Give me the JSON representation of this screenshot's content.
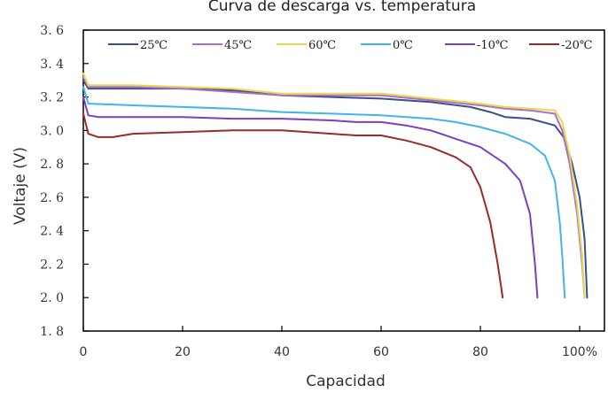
{
  "chart_data": {
    "type": "line",
    "title": "Curva de descarga vs. temperatura",
    "xlabel": "Capacidad",
    "ylabel": "Voltaje (V)",
    "xlim": [
      0,
      105
    ],
    "ylim": [
      1.8,
      3.6
    ],
    "x_ticks": [
      {
        "value": 0,
        "label": "0"
      },
      {
        "value": 20,
        "label": "20"
      },
      {
        "value": 40,
        "label": "40"
      },
      {
        "value": 60,
        "label": "60"
      },
      {
        "value": 80,
        "label": "80"
      },
      {
        "value": 100,
        "label": "100%"
      }
    ],
    "y_ticks": [
      {
        "value": 1.8,
        "label": "1. 8"
      },
      {
        "value": 2.0,
        "label": "2. 0"
      },
      {
        "value": 2.2,
        "label": "2. 2"
      },
      {
        "value": 2.4,
        "label": "2. 4"
      },
      {
        "value": 2.6,
        "label": "2. 6"
      },
      {
        "value": 2.8,
        "label": "2. 8"
      },
      {
        "value": 3.0,
        "label": "3. 0"
      },
      {
        "value": 3.2,
        "label": "3. 2"
      },
      {
        "value": 3.4,
        "label": "3. 4"
      },
      {
        "value": 3.6,
        "label": "3. 6"
      }
    ],
    "grid": false,
    "legend_position": "top",
    "series": [
      {
        "name": "25℃",
        "color": "#3a4f8a",
        "points": [
          [
            0,
            3.3
          ],
          [
            1,
            3.25
          ],
          [
            10,
            3.25
          ],
          [
            20,
            3.25
          ],
          [
            30,
            3.24
          ],
          [
            40,
            3.21
          ],
          [
            50,
            3.2
          ],
          [
            60,
            3.19
          ],
          [
            70,
            3.17
          ],
          [
            78,
            3.14
          ],
          [
            82,
            3.11
          ],
          [
            85,
            3.08
          ],
          [
            90,
            3.07
          ],
          [
            95,
            3.03
          ],
          [
            97,
            2.95
          ],
          [
            98.5,
            2.8
          ],
          [
            100,
            2.6
          ],
          [
            101,
            2.35
          ],
          [
            101.5,
            2.0
          ]
        ]
      },
      {
        "name": "45℃",
        "color": "#a86ed0",
        "points": [
          [
            0,
            3.32
          ],
          [
            1,
            3.26
          ],
          [
            10,
            3.26
          ],
          [
            20,
            3.25
          ],
          [
            30,
            3.23
          ],
          [
            40,
            3.21
          ],
          [
            50,
            3.21
          ],
          [
            60,
            3.21
          ],
          [
            70,
            3.18
          ],
          [
            80,
            3.15
          ],
          [
            85,
            3.13
          ],
          [
            90,
            3.12
          ],
          [
            95,
            3.1
          ],
          [
            96.5,
            3.0
          ],
          [
            98,
            2.8
          ],
          [
            99.5,
            2.5
          ],
          [
            100.5,
            2.2
          ],
          [
            101,
            2.0
          ]
        ]
      },
      {
        "name": "60℃",
        "color": "#e8d84a",
        "points": [
          [
            0,
            3.34
          ],
          [
            1,
            3.27
          ],
          [
            10,
            3.27
          ],
          [
            20,
            3.26
          ],
          [
            30,
            3.25
          ],
          [
            40,
            3.22
          ],
          [
            50,
            3.22
          ],
          [
            60,
            3.22
          ],
          [
            70,
            3.19
          ],
          [
            80,
            3.16
          ],
          [
            85,
            3.14
          ],
          [
            90,
            3.13
          ],
          [
            95,
            3.12
          ],
          [
            96.5,
            3.05
          ],
          [
            98,
            2.85
          ],
          [
            99.5,
            2.55
          ],
          [
            100.5,
            2.25
          ],
          [
            101,
            2.0
          ]
        ]
      },
      {
        "name": "0℃",
        "color": "#3fb6e6",
        "points": [
          [
            0,
            3.26
          ],
          [
            1,
            3.16
          ],
          [
            10,
            3.15
          ],
          [
            20,
            3.14
          ],
          [
            30,
            3.13
          ],
          [
            40,
            3.11
          ],
          [
            50,
            3.1
          ],
          [
            60,
            3.09
          ],
          [
            70,
            3.07
          ],
          [
            75,
            3.05
          ],
          [
            80,
            3.02
          ],
          [
            85,
            2.98
          ],
          [
            90,
            2.92
          ],
          [
            93,
            2.85
          ],
          [
            95,
            2.7
          ],
          [
            96,
            2.45
          ],
          [
            96.5,
            2.25
          ],
          [
            97,
            2.0
          ]
        ]
      },
      {
        "name": "-10℃",
        "color": "#7a3fc0",
        "points": [
          [
            0,
            3.2
          ],
          [
            1,
            3.09
          ],
          [
            3,
            3.08
          ],
          [
            10,
            3.08
          ],
          [
            20,
            3.08
          ],
          [
            30,
            3.07
          ],
          [
            40,
            3.07
          ],
          [
            50,
            3.06
          ],
          [
            55,
            3.05
          ],
          [
            60,
            3.05
          ],
          [
            65,
            3.03
          ],
          [
            70,
            3.0
          ],
          [
            75,
            2.95
          ],
          [
            80,
            2.9
          ],
          [
            85,
            2.8
          ],
          [
            88,
            2.7
          ],
          [
            90,
            2.5
          ],
          [
            91,
            2.2
          ],
          [
            91.5,
            2.0
          ]
        ]
      },
      {
        "name": "-20℃",
        "color": "#9a2a2a",
        "points": [
          [
            0,
            3.1
          ],
          [
            1,
            2.98
          ],
          [
            3,
            2.96
          ],
          [
            6,
            2.96
          ],
          [
            10,
            2.98
          ],
          [
            20,
            2.99
          ],
          [
            30,
            3.0
          ],
          [
            40,
            3.0
          ],
          [
            50,
            2.98
          ],
          [
            55,
            2.97
          ],
          [
            60,
            2.97
          ],
          [
            65,
            2.94
          ],
          [
            70,
            2.9
          ],
          [
            75,
            2.84
          ],
          [
            78,
            2.78
          ],
          [
            80,
            2.66
          ],
          [
            82,
            2.45
          ],
          [
            83.5,
            2.2
          ],
          [
            84.5,
            2.0
          ]
        ]
      }
    ]
  }
}
